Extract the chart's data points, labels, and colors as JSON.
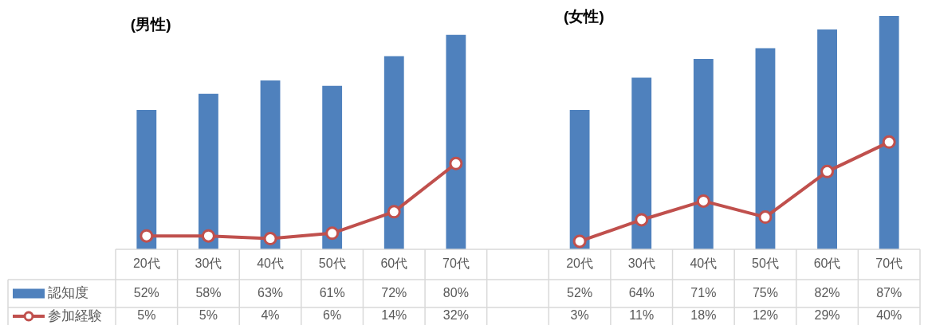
{
  "chart_data": {
    "type": "bar",
    "categories": [
      "20代",
      "30代",
      "40代",
      "50代",
      "60代",
      "70代",
      null,
      "20代",
      "30代",
      "40代",
      "50代",
      "60代",
      "70代"
    ],
    "series": [
      {
        "name": "認知度",
        "color": "#4f81bd",
        "values": [
          52,
          58,
          63,
          61,
          72,
          80,
          null,
          52,
          64,
          71,
          75,
          82,
          87
        ],
        "value_labels": [
          "52%",
          "58%",
          "63%",
          "61%",
          "72%",
          "80%",
          null,
          "52%",
          "64%",
          "71%",
          "75%",
          "82%",
          "87%"
        ]
      },
      {
        "name": "参加経験",
        "type": "line",
        "color": "#c0504d",
        "values": [
          5,
          5,
          4,
          6,
          14,
          32,
          null,
          3,
          11,
          18,
          12,
          29,
          40
        ],
        "value_labels": [
          "5%",
          "5%",
          "4%",
          "6%",
          "14%",
          "32%",
          null,
          "3%",
          "11%",
          "18%",
          "12%",
          "29%",
          "40%"
        ]
      }
    ],
    "annotations": [
      "(男性)",
      "(女性)"
    ],
    "grid": false,
    "legend": "bottom left",
    "marker": "circle",
    "line_style": "solid"
  }
}
